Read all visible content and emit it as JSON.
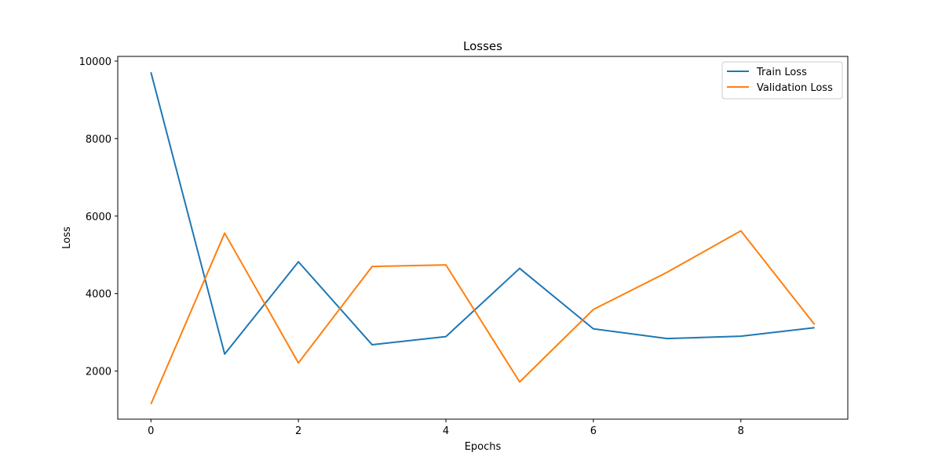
{
  "chart_data": {
    "type": "line",
    "title": "Losses",
    "xlabel": "Epochs",
    "ylabel": "Loss",
    "x": [
      0,
      1,
      2,
      3,
      4,
      5,
      6,
      7,
      8,
      9
    ],
    "xlim": [
      -0.45,
      9.45
    ],
    "ylim": [
      760,
      10120
    ],
    "xticks": [
      0,
      2,
      4,
      6,
      8
    ],
    "yticks": [
      2000,
      4000,
      6000,
      8000,
      10000
    ],
    "grid": false,
    "legend_position": "top-right",
    "series": [
      {
        "name": "Train Loss",
        "color": "#1f77b4",
        "values": [
          9710,
          2440,
          4820,
          2680,
          2890,
          4650,
          3090,
          2840,
          2900,
          3120
        ]
      },
      {
        "name": "Validation Loss",
        "color": "#ff7f0e",
        "values": [
          1150,
          5560,
          2210,
          4700,
          4740,
          1720,
          3590,
          4550,
          5620,
          3200
        ]
      }
    ]
  }
}
